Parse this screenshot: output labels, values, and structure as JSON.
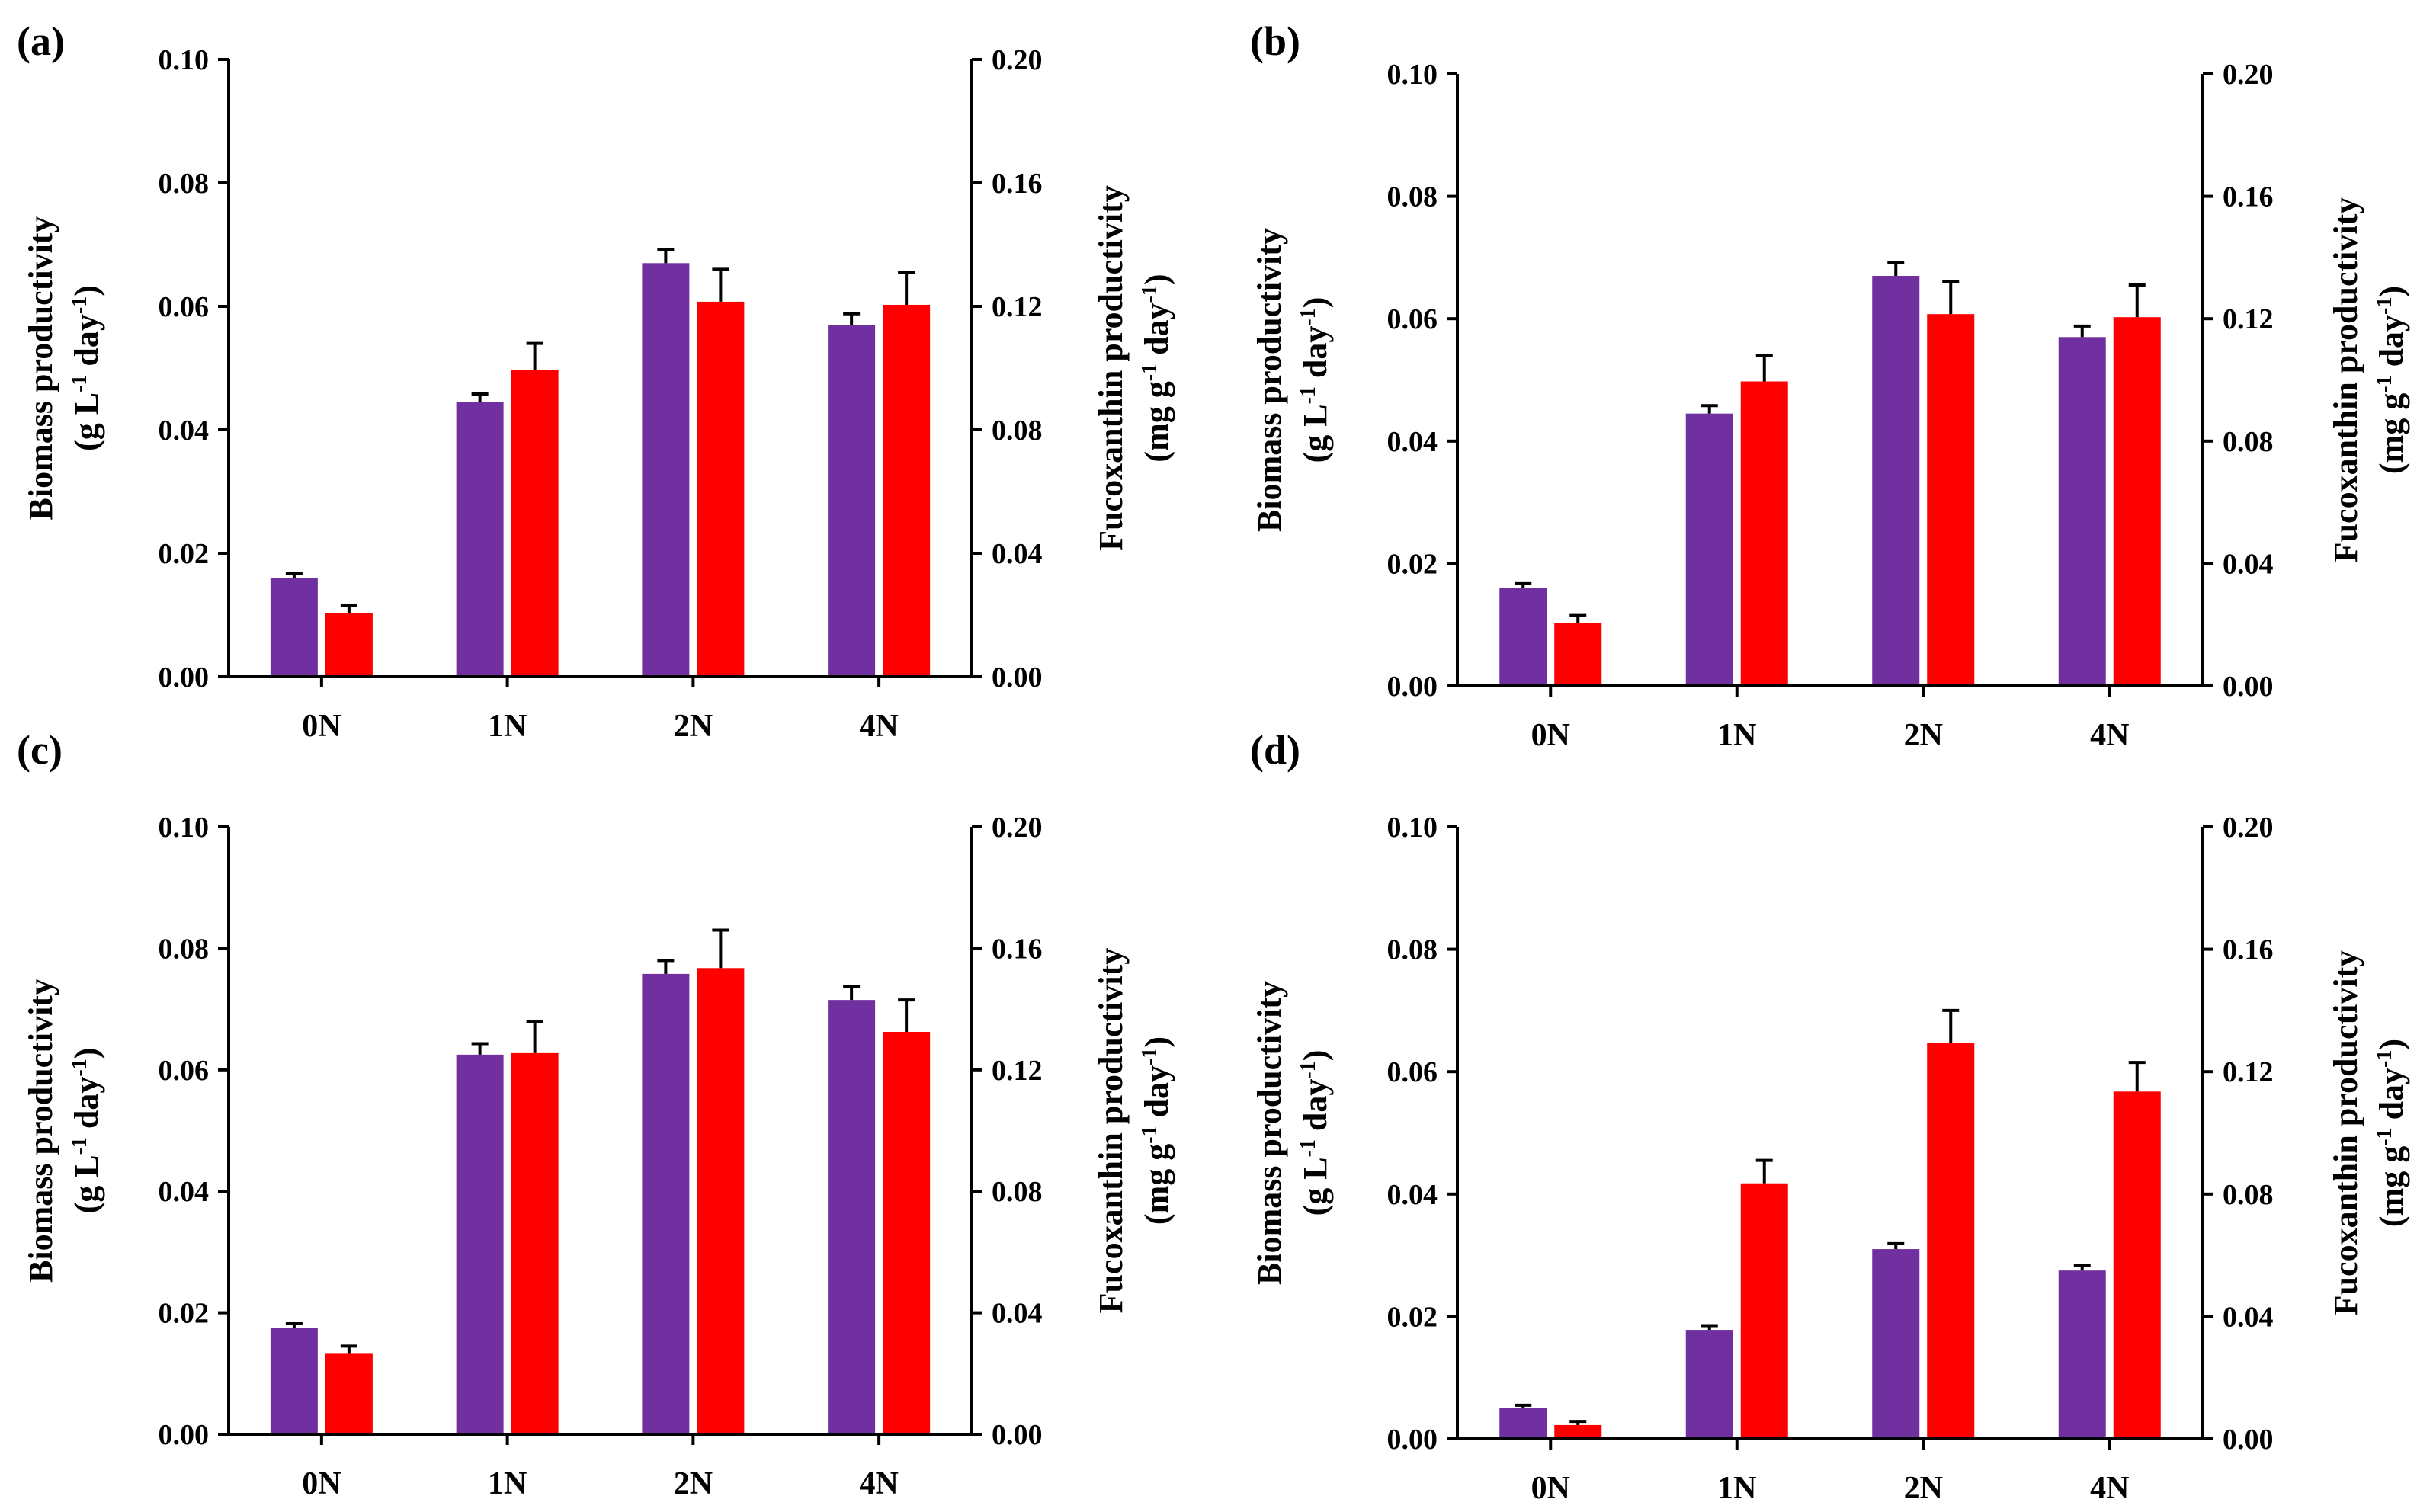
{
  "colors": {
    "biomass": "#7030A0",
    "fucoxanthin": "#FF0000",
    "axis": "#000000"
  },
  "chart_data": [
    {
      "panel_label": "(a)",
      "type": "bar",
      "categories": [
        "0N",
        "1N",
        "2N",
        "4N"
      ],
      "left_axis": {
        "label_line1": "Biomass  productivity",
        "label_line2_prefix": "(g L",
        "label_sup1": "-1",
        "label_mid": " day",
        "label_sup2": "-1",
        "label_suffix": ")",
        "ylim": [
          0,
          0.1
        ],
        "ticks": [
          "0.00",
          "0.02",
          "0.04",
          "0.06",
          "0.08",
          "0.10"
        ]
      },
      "right_axis": {
        "label_line1": "Fucoxanthin productivity",
        "label_line2_prefix": "(mg g",
        "label_sup1": "-1",
        "label_mid": " day",
        "label_sup2": "-1",
        "label_suffix": ")",
        "ylim": [
          0,
          0.2
        ],
        "ticks": [
          "0.00",
          "0.04",
          "0.08",
          "0.12",
          "0.16",
          "0.20"
        ]
      },
      "series": [
        {
          "axis": "left",
          "values": [
            0.016,
            0.0445,
            0.067,
            0.057
          ],
          "errors": [
            0.0007,
            0.0013,
            0.0022,
            0.0018
          ]
        },
        {
          "axis": "right",
          "values": [
            0.0205,
            0.0995,
            0.1215,
            0.1205
          ],
          "errors": [
            0.0025,
            0.0085,
            0.0105,
            0.0105
          ]
        }
      ]
    },
    {
      "panel_label": "(b)",
      "type": "bar",
      "categories": [
        "0N",
        "1N",
        "2N",
        "4N"
      ],
      "left_axis": {
        "label_line1": "Biomass  productivity",
        "label_line2_prefix": "(g L",
        "label_sup1": "-1",
        "label_mid": " day",
        "label_sup2": "-1",
        "label_suffix": ")",
        "ylim": [
          0,
          0.1
        ],
        "ticks": [
          "0.00",
          "0.02",
          "0.04",
          "0.06",
          "0.08",
          "0.10"
        ]
      },
      "right_axis": {
        "label_line1": "Fucoxanthin productivity",
        "label_line2_prefix": "(mg g",
        "label_sup1": "-1",
        "label_mid": " day",
        "label_sup2": "-1",
        "label_suffix": ")",
        "ylim": [
          0,
          0.2
        ],
        "ticks": [
          "0.00",
          "0.04",
          "0.08",
          "0.12",
          "0.16",
          "0.20"
        ]
      },
      "series": [
        {
          "axis": "left",
          "values": [
            0.016,
            0.0445,
            0.067,
            0.057
          ],
          "errors": [
            0.0007,
            0.0013,
            0.0022,
            0.0018
          ]
        },
        {
          "axis": "right",
          "values": [
            0.0205,
            0.0995,
            0.1215,
            0.1205
          ],
          "errors": [
            0.0025,
            0.0085,
            0.0105,
            0.0105
          ]
        }
      ]
    },
    {
      "panel_label": "(c)",
      "type": "bar",
      "categories": [
        "0N",
        "1N",
        "2N",
        "4N"
      ],
      "left_axis": {
        "label_line1": "Biomass  productivity",
        "label_line2_prefix": "(g L",
        "label_sup1": "-1",
        "label_mid": " day",
        "label_sup2": "-1",
        "label_suffix": ")",
        "ylim": [
          0,
          0.1
        ],
        "ticks": [
          "0.00",
          "0.02",
          "0.04",
          "0.06",
          "0.08",
          "0.10"
        ]
      },
      "right_axis": {
        "label_line1": "Fucoxanthin productivity",
        "label_line2_prefix": "(mg g",
        "label_sup1": "-1",
        "label_mid": " day",
        "label_sup2": "-1",
        "label_suffix": ")",
        "ylim": [
          0,
          0.2
        ],
        "ticks": [
          "0.00",
          "0.04",
          "0.08",
          "0.12",
          "0.16",
          "0.20"
        ]
      },
      "series": [
        {
          "axis": "left",
          "values": [
            0.0175,
            0.0625,
            0.0758,
            0.0715
          ],
          "errors": [
            0.0007,
            0.0018,
            0.0022,
            0.0022
          ]
        },
        {
          "axis": "right",
          "values": [
            0.0265,
            0.1255,
            0.1535,
            0.1325
          ],
          "errors": [
            0.0025,
            0.0105,
            0.0125,
            0.0105
          ]
        }
      ]
    },
    {
      "panel_label": "(d)",
      "type": "bar",
      "categories": [
        "0N",
        "1N",
        "2N",
        "4N"
      ],
      "left_axis": {
        "label_line1": "Biomass  productivity",
        "label_line2_prefix": "(g L",
        "label_sup1": "-1",
        "label_mid": " day",
        "label_sup2": "-1",
        "label_suffix": ")",
        "ylim": [
          0,
          0.1
        ],
        "ticks": [
          "0.00",
          "0.02",
          "0.04",
          "0.06",
          "0.08",
          "0.10"
        ]
      },
      "right_axis": {
        "label_line1": "Fucoxanthin productivity",
        "label_line2_prefix": "(mg g",
        "label_sup1": "-1",
        "label_mid": " day",
        "label_sup2": "-1",
        "label_suffix": ")",
        "ylim": [
          0,
          0.2
        ],
        "ticks": [
          "0.00",
          "0.04",
          "0.08",
          "0.12",
          "0.16",
          "0.20"
        ]
      },
      "series": [
        {
          "axis": "left",
          "values": [
            0.005,
            0.0178,
            0.031,
            0.0275
          ],
          "errors": [
            0.0005,
            0.0007,
            0.0009,
            0.0009
          ]
        },
        {
          "axis": "right",
          "values": [
            0.0045,
            0.0835,
            0.1295,
            0.1135
          ],
          "errors": [
            0.0012,
            0.0075,
            0.0105,
            0.0095
          ]
        }
      ]
    }
  ]
}
